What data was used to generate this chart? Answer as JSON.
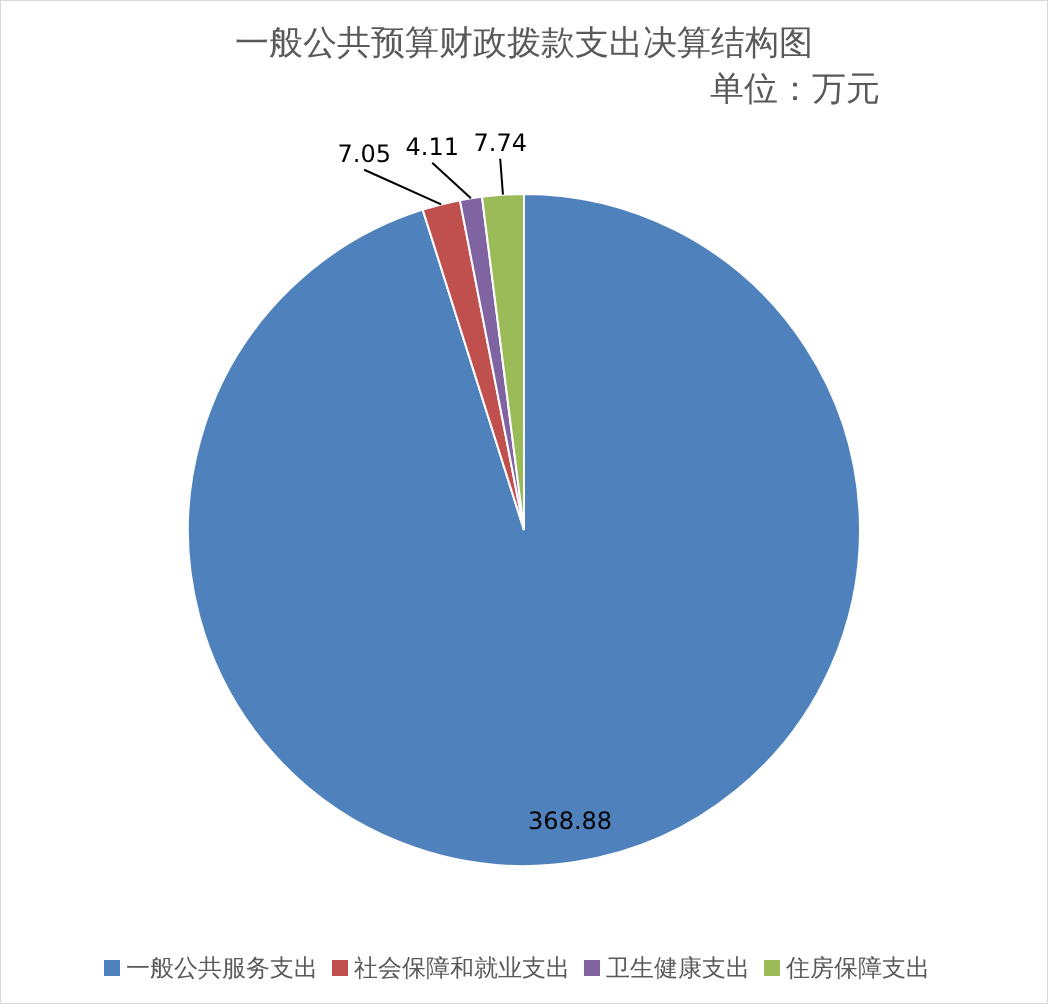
{
  "chart_data": {
    "type": "pie",
    "title": "一般公共预算财政拨款支出决算结构图",
    "subtitle": "单位：万元",
    "categories": [
      "一般公共服务支出",
      "社会保障和就业支出",
      "卫生健康支出",
      "住房保障支出"
    ],
    "values": [
      368.88,
      7.05,
      4.11,
      7.74
    ],
    "colors": [
      "#4f81bd",
      "#c0504d",
      "#8064a2",
      "#9bbb59"
    ],
    "data_labels": true,
    "legend": "bottom"
  }
}
